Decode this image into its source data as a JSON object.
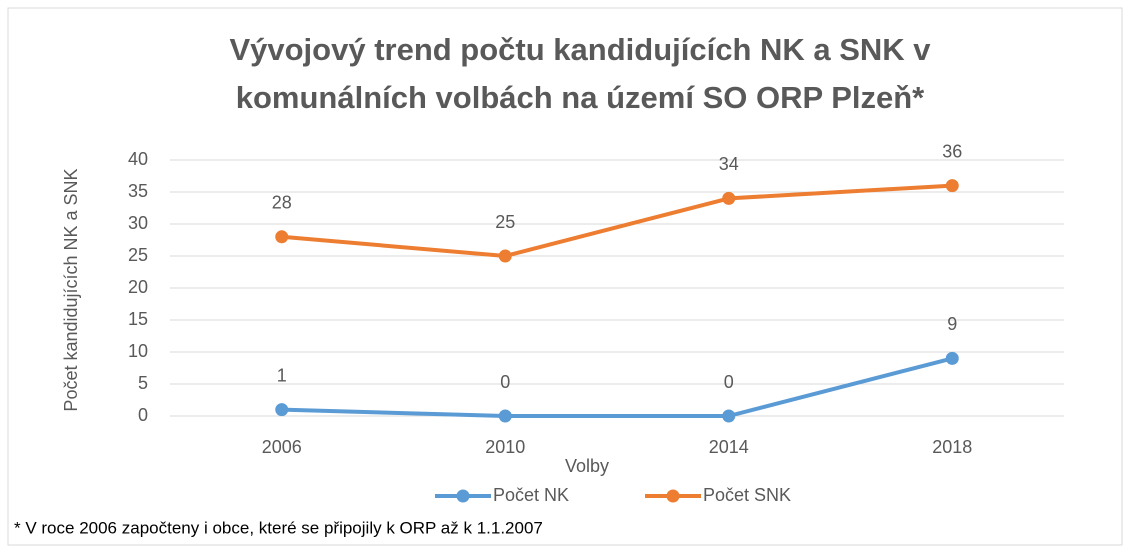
{
  "chart_data": {
    "type": "line",
    "title": [
      "Vývojový trend počtu kandidujících NK a SNK v",
      "komunálních volbách na území SO ORP Plzeň*"
    ],
    "x_label": "Volby",
    "y_label": "Počet kandidujících NK a SNK",
    "note": "* V roce 2006 započteny i obce, které se připojily k ORP až k 1.1.2007",
    "categories": [
      "2006",
      "2010",
      "2014",
      "2018"
    ],
    "series": [
      {
        "name": "Počet NK",
        "color": "#5b9bd5",
        "values": [
          1,
          0,
          0,
          9
        ]
      },
      {
        "name": "Počet SNK",
        "color": "#ed7d31",
        "values": [
          28,
          25,
          34,
          36
        ]
      }
    ],
    "ylim": [
      0,
      40
    ],
    "yticks": [
      0,
      5,
      10,
      15,
      20,
      25,
      30,
      35,
      40
    ],
    "grid": true,
    "legend": "bottom"
  }
}
